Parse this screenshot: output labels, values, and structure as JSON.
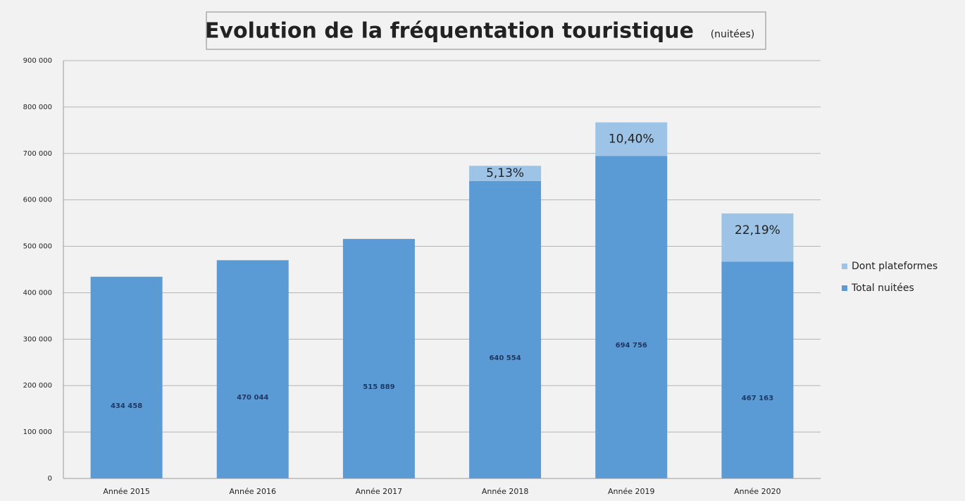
{
  "chart_data": {
    "type": "stacked-bar",
    "title": "Evolution de la fréquentation touristique",
    "subtitle": "(nuitées)",
    "categories": [
      "Année 2015",
      "Année 2016",
      "Année 2017",
      "Année 2018",
      "Année 2019",
      "Année 2020"
    ],
    "series": [
      {
        "name": "Total nuitées",
        "color": "#5b9bd5",
        "values": [
          434458,
          470044,
          515889,
          640554,
          694756,
          467163
        ],
        "value_labels": [
          "434 458",
          "470 044",
          "515 889",
          "640 554",
          "694 756",
          "467 163"
        ]
      },
      {
        "name": "Dont plateformes",
        "color": "#9dc3e6",
        "values": [
          null,
          null,
          null,
          32860,
          72255,
          103663
        ]
      }
    ],
    "annotations": [
      null,
      null,
      null,
      "5,13%",
      "10,40%",
      "22,19%"
    ],
    "ylim": [
      0,
      900000
    ],
    "yticks": [
      0,
      {
        "value": 100000,
        "label": "100 000"
      },
      {
        "value": 200000,
        "label": "200 000"
      },
      {
        "value": 300000,
        "label": "300 000"
      },
      {
        "value": 400000,
        "label": "400 000"
      },
      {
        "value": 500000,
        "label": "500 000"
      },
      {
        "value": 600000,
        "label": "600 000"
      },
      {
        "value": 700000,
        "label": "700 000"
      },
      {
        "value": 800000,
        "label": "800 000"
      },
      {
        "value": 900000,
        "label": "900 000"
      }
    ],
    "grid": true,
    "legend": "right"
  }
}
